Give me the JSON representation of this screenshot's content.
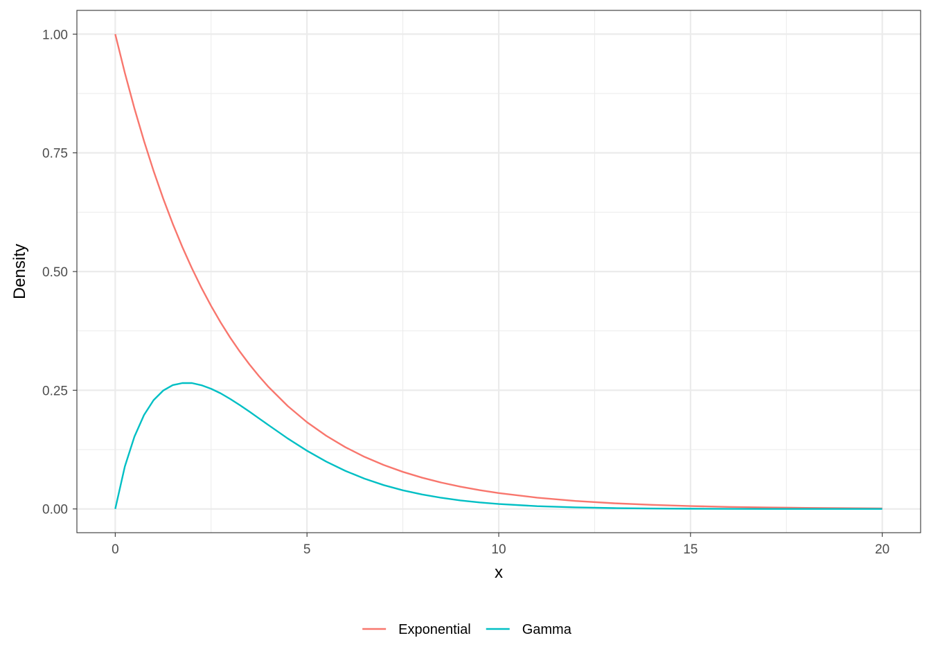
{
  "chart_data": {
    "type": "line",
    "xlabel": "x",
    "ylabel": "Density",
    "xlim": [
      -1,
      21
    ],
    "ylim": [
      -0.05,
      1.05
    ],
    "x_ticks": [
      0,
      5,
      10,
      15,
      20
    ],
    "x_tick_labels": [
      "0",
      "5",
      "10",
      "15",
      "20"
    ],
    "y_ticks": [
      0,
      0.25,
      0.5,
      0.75,
      1.0
    ],
    "y_tick_labels": [
      "0.00",
      "0.25",
      "0.50",
      "0.75",
      "1.00"
    ],
    "x_minor": [
      2.5,
      7.5,
      12.5,
      17.5
    ],
    "y_minor": [
      0.125,
      0.375,
      0.625,
      0.875
    ],
    "grid": true,
    "legend_position": "bottom",
    "x": [
      0,
      0.25,
      0.5,
      0.75,
      1,
      1.25,
      1.5,
      1.75,
      2,
      2.25,
      2.5,
      2.75,
      3,
      3.25,
      3.5,
      3.75,
      4,
      4.5,
      5,
      5.5,
      6,
      6.5,
      7,
      7.5,
      8,
      8.5,
      9,
      9.5,
      10,
      11,
      12,
      13,
      14,
      15,
      16,
      17,
      18,
      19,
      20
    ],
    "series": [
      {
        "name": "Exponential",
        "color": "#F8766D",
        "values": [
          1.0,
          0.9185,
          0.8437,
          0.775,
          0.7118,
          0.6538,
          0.6005,
          0.5516,
          0.5067,
          0.4654,
          0.4275,
          0.3926,
          0.3606,
          0.3313,
          0.3043,
          0.2795,
          0.2567,
          0.2166,
          0.1827,
          0.1542,
          0.1301,
          0.1097,
          0.0926,
          0.0781,
          0.0659,
          0.0556,
          0.0469,
          0.0396,
          0.0334,
          0.0238,
          0.0169,
          0.012,
          0.0086,
          0.0061,
          0.0043,
          0.0031,
          0.0022,
          0.0016,
          0.0011
        ]
      },
      {
        "name": "Gamma",
        "color": "#00BFC4",
        "values": [
          0.0,
          0.0893,
          0.1523,
          0.1978,
          0.2292,
          0.2493,
          0.2608,
          0.2651,
          0.2651,
          0.2605,
          0.2531,
          0.2434,
          0.2316,
          0.2186,
          0.2049,
          0.1906,
          0.1764,
          0.1483,
          0.1226,
          0.0998,
          0.0802,
          0.0638,
          0.0502,
          0.0393,
          0.0305,
          0.0235,
          0.018,
          0.0137,
          0.0104,
          0.0059,
          0.0033,
          0.0018,
          0.001,
          0.0005,
          0.0003,
          0.0001,
          0.0001,
          0.0,
          0.0
        ]
      }
    ]
  }
}
